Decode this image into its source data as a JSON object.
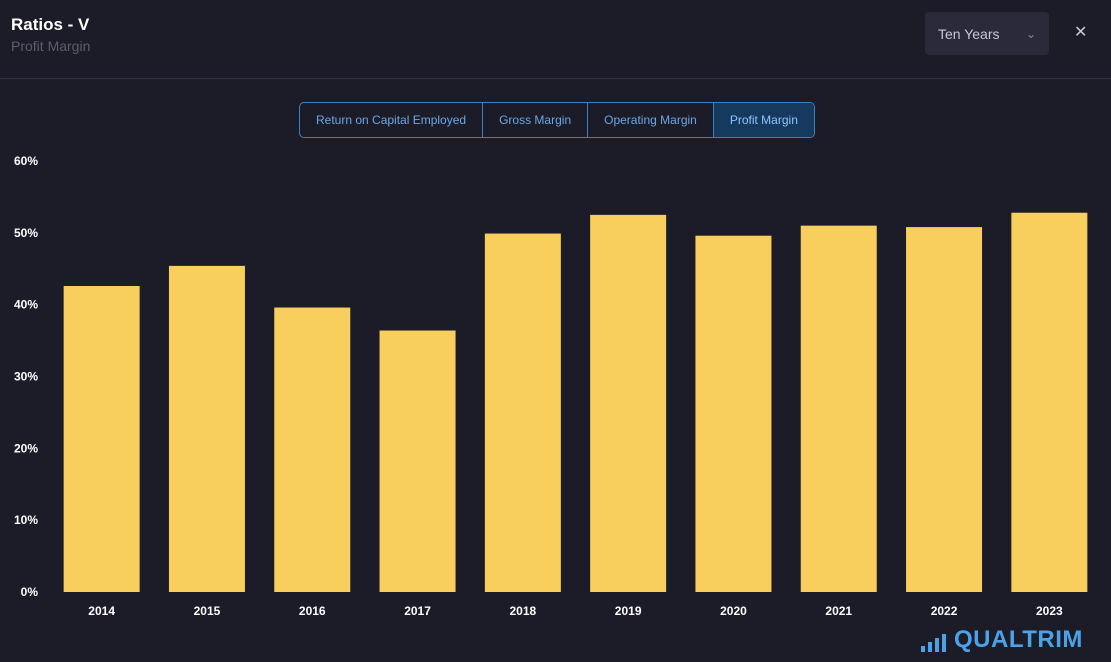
{
  "header": {
    "title": "Ratios - V",
    "subtitle": "Profit Margin"
  },
  "range_select": {
    "value": "Ten Years",
    "icon": "chevron-down-icon"
  },
  "close_icon": "close-icon",
  "tabs": [
    {
      "label": "Return on Capital Employed",
      "active": false
    },
    {
      "label": "Gross Margin",
      "active": false
    },
    {
      "label": "Operating Margin",
      "active": false
    },
    {
      "label": "Profit Margin",
      "active": true
    }
  ],
  "brand": "QUALTRIM",
  "chart_data": {
    "type": "bar",
    "categories": [
      "2014",
      "2015",
      "2016",
      "2017",
      "2018",
      "2019",
      "2020",
      "2021",
      "2022",
      "2023"
    ],
    "values": [
      42.6,
      45.4,
      39.6,
      36.4,
      49.9,
      52.5,
      49.6,
      51.0,
      50.8,
      52.8
    ],
    "unit": "%",
    "ylim": [
      0,
      60
    ],
    "yticks": [
      "0%",
      "10%",
      "20%",
      "30%",
      "40%",
      "50%",
      "60%"
    ],
    "grid": false,
    "bar_color": "#f8cf5c"
  }
}
